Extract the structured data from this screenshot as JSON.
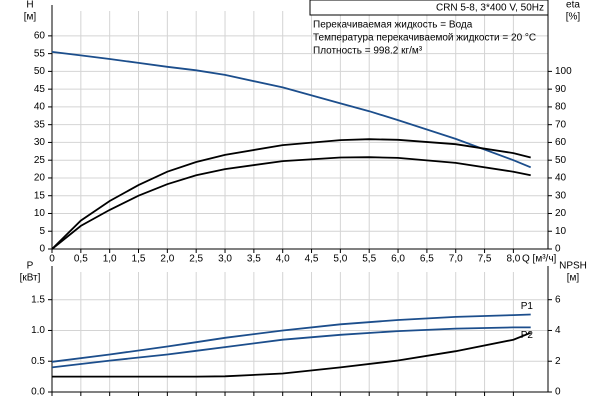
{
  "chart_data": [
    {
      "type": "line",
      "y_label": "H",
      "y_unit": "[м]",
      "y2_label": "eta",
      "y2_unit": "[%]",
      "x_label": "Q [м³/ч]",
      "header": "CRN 5-8, 3*400 V, 50Hz",
      "annotations": [
        "Перекачиваемая жидкость = Вода",
        "Температура перекачиваемой жидкости = 20 °C",
        "Плотность = 998.2 кг/м³"
      ],
      "x": [
        0,
        0.5,
        1,
        1.5,
        2,
        2.5,
        3,
        4,
        5,
        5.5,
        6,
        7,
        8,
        8.3
      ],
      "series": [
        {
          "color": "#1c4e8c",
          "values": [
            55.5,
            54.5,
            53.5,
            52.4,
            51.3,
            50.3,
            49,
            45.5,
            41,
            38.8,
            36.3,
            31,
            25,
            23
          ]
        },
        {
          "color": "#000000",
          "axis": "y2",
          "values": [
            0,
            16,
            27,
            36,
            43.5,
            49,
            53,
            58.5,
            61.3,
            61.8,
            61.5,
            59,
            54,
            51.5
          ]
        },
        {
          "color": "#000000",
          "axis": "y2",
          "values": [
            0,
            13,
            22,
            30,
            36.5,
            41.5,
            45,
            49.5,
            51.5,
            51.7,
            51.3,
            48.5,
            43.5,
            41.5
          ]
        }
      ],
      "xlim": [
        0,
        8.6
      ],
      "xticks": [
        0,
        {
          "value": 0.5,
          "label": "0,5"
        },
        {
          "value": 1,
          "label": "1,0"
        },
        {
          "value": 1.5,
          "label": "1,5"
        },
        {
          "value": 2,
          "label": "2,0"
        },
        {
          "value": 2.5,
          "label": "2,5"
        },
        {
          "value": 3,
          "label": "3,0"
        },
        {
          "value": 3.5,
          "label": "3,5"
        },
        {
          "value": 4,
          "label": "4,0"
        },
        {
          "value": 4.5,
          "label": "4,5"
        },
        {
          "value": 5,
          "label": "5,0"
        },
        {
          "value": 5.5,
          "label": "5,5"
        },
        {
          "value": 6,
          "label": "6,0"
        },
        {
          "value": 6.5,
          "label": "6,5"
        },
        {
          "value": 7,
          "label": "7,0"
        },
        {
          "value": 7.5,
          "label": "7,5"
        },
        {
          "value": 8,
          "label": "8,0"
        }
      ],
      "ylim": [
        0,
        67
      ],
      "yticks": [
        0,
        5,
        10,
        15,
        20,
        25,
        30,
        35,
        40,
        45,
        50,
        55,
        60
      ],
      "y2lim": [
        0,
        134
      ],
      "y2ticks": [
        0,
        10,
        20,
        30,
        40,
        50,
        60,
        70,
        80,
        90,
        100
      ],
      "grid": true
    },
    {
      "type": "line",
      "y_label": "P",
      "y_unit": "[кВт]",
      "y2_label": "NPSH",
      "y2_unit": "[м]",
      "x": [
        0,
        1,
        2,
        2.5,
        3,
        4,
        5,
        6,
        7,
        8,
        8.3
      ],
      "series": [
        {
          "name": "P1",
          "color": "#1c4e8c",
          "values": [
            0.49,
            0.61,
            0.74,
            0.81,
            0.88,
            1.0,
            1.1,
            1.17,
            1.22,
            1.25,
            1.26
          ]
        },
        {
          "name": "P2",
          "color": "#1c4e8c",
          "values": [
            0.4,
            0.51,
            0.61,
            0.67,
            0.73,
            0.85,
            0.93,
            0.99,
            1.03,
            1.05,
            1.05
          ]
        },
        {
          "color": "#000000",
          "axis": "y2",
          "values": [
            1.0,
            1.0,
            1.0,
            1.0,
            1.02,
            1.2,
            1.6,
            2.05,
            2.65,
            3.4,
            3.85
          ]
        }
      ],
      "xlim": [
        0,
        8.6
      ],
      "ylim": [
        0,
        1.95
      ],
      "yticks": [
        {
          "value": 0,
          "label": "0.0"
        },
        0.5,
        {
          "value": 1,
          "label": "1.0"
        },
        1.5
      ],
      "y2lim": [
        0,
        7.8
      ],
      "y2ticks": [
        0,
        2,
        4,
        6
      ],
      "grid": true
    }
  ]
}
